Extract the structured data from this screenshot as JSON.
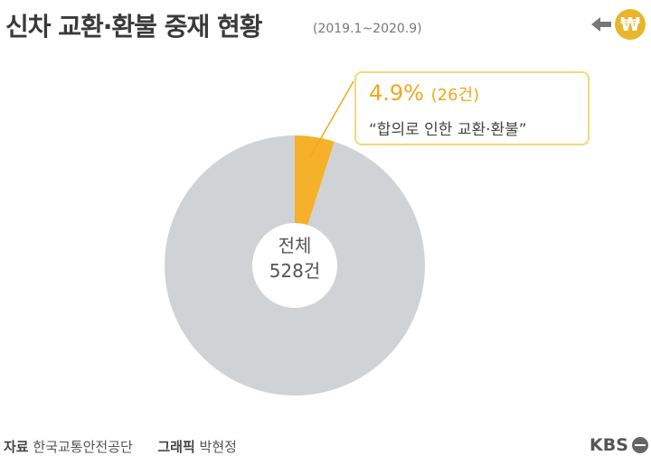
{
  "header": {
    "title": "신차 교환·환불 중재 현황",
    "period": "(2019.1~2020.9)"
  },
  "icons": {
    "back": "arrow-left-icon",
    "currency": "won-icon",
    "currency_symbol": "₩"
  },
  "chart_data": {
    "type": "pie",
    "style": "donut",
    "total": 528,
    "slices": [
      {
        "label": "합의로 인한 교환·환불",
        "value": 26,
        "percent": 4.9,
        "color": "#f5b12a"
      },
      {
        "label": "",
        "value": 502,
        "color": "#d0d3d6"
      }
    ]
  },
  "callout": {
    "percent": "4.9%",
    "count": "(26건)",
    "label": "“합의로 인한 교환·환불”",
    "accent": "#f0a81c"
  },
  "center": {
    "line1": "전체",
    "line2": "528건"
  },
  "footer": {
    "source_label": "자료",
    "source": "한국교통안전공단",
    "graphic_label": "그래픽",
    "graphic": "박현정",
    "logo": "KBS"
  }
}
